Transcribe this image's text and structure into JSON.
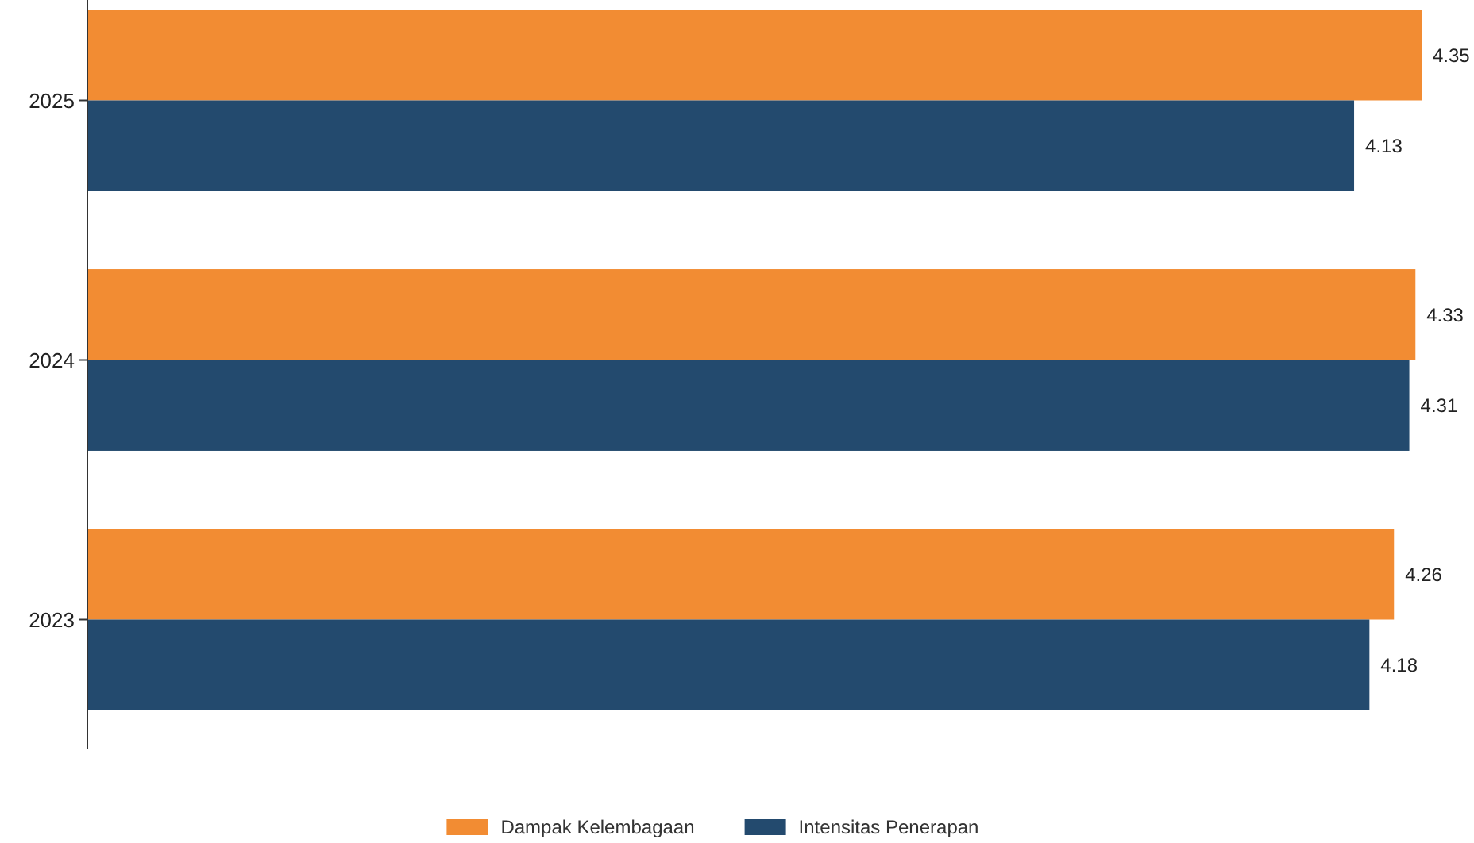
{
  "chart_data": {
    "type": "bar",
    "orientation": "horizontal",
    "categories": [
      "2025",
      "2024",
      "2023"
    ],
    "series": [
      {
        "name": "Dampak Kelembagaan",
        "color": "#f28c33",
        "values": [
          4.35,
          4.33,
          4.26
        ]
      },
      {
        "name": "Intensitas Penerapan",
        "color": "#234a6e",
        "values": [
          4.13,
          4.31,
          4.18
        ]
      }
    ],
    "xlim": [
      0,
      4.35
    ],
    "data_labels": true,
    "legend": "bottom",
    "tick_labels": "y"
  }
}
